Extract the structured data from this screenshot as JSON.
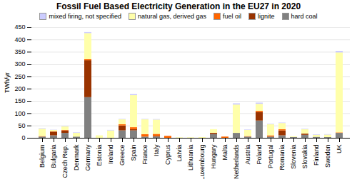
{
  "chart_data": {
    "type": "bar",
    "stacked": true,
    "title": "Fossil Fuel Based Electricity Generation in the EU27 in 2020",
    "ylabel": "TWh/yr",
    "ylim": [
      0,
      450
    ],
    "yticks": [
      0,
      50,
      100,
      150,
      200,
      250,
      300,
      350,
      400,
      450
    ],
    "grid": true,
    "legend": "upper right",
    "categories": [
      "Belgium",
      "Bulgaria",
      "Czech Rep.",
      "Denmark",
      "Germany",
      "Estonia",
      "Ireland",
      "Greece",
      "Spain",
      "France",
      "Italy",
      "Cyprus",
      "Latvia",
      "Lithuania",
      "Luxembourg",
      "Hungary",
      "Malta",
      "Netherlands",
      "Austria",
      "Poland",
      "Portugal",
      "Romania",
      "Slovenia",
      "Slovakia",
      "Finland",
      "Sweden",
      "UK"
    ],
    "series": [
      {
        "name": "hard coal",
        "color": "#808080",
        "values": [
          5,
          10,
          20,
          5,
          165,
          0,
          0,
          30,
          30,
          5,
          5,
          0,
          0,
          0,
          0,
          15,
          0,
          20,
          5,
          70,
          5,
          10,
          3,
          12,
          4,
          3,
          20
        ]
      },
      {
        "name": "lignite",
        "color": "#993300",
        "values": [
          0,
          15,
          10,
          0,
          150,
          0,
          0,
          20,
          5,
          0,
          3,
          0,
          0,
          0,
          0,
          5,
          0,
          0,
          0,
          35,
          0,
          20,
          0,
          5,
          0,
          0,
          0
        ]
      },
      {
        "name": "fuel oil",
        "color": "#FF6600",
        "values": [
          2,
          2,
          2,
          0,
          5,
          0,
          0,
          5,
          8,
          10,
          8,
          8,
          0,
          0,
          0,
          0,
          5,
          0,
          2,
          5,
          5,
          5,
          0,
          0,
          0,
          0,
          2
        ]
      },
      {
        "name": "natural gas, derived gas",
        "color": "#FFFFAA",
        "values": [
          30,
          5,
          15,
          15,
          105,
          10,
          30,
          20,
          130,
          60,
          58,
          0,
          2,
          2,
          3,
          15,
          0,
          115,
          25,
          28,
          45,
          25,
          3,
          18,
          8,
          10,
          325
        ]
      },
      {
        "name": "mixed firing, not specified",
        "color": "#CCCCFF",
        "values": [
          2,
          1,
          2,
          2,
          5,
          0,
          2,
          2,
          5,
          2,
          2,
          0,
          0,
          0,
          0,
          0,
          0,
          5,
          2,
          5,
          2,
          2,
          0,
          2,
          2,
          2,
          5
        ]
      }
    ]
  }
}
